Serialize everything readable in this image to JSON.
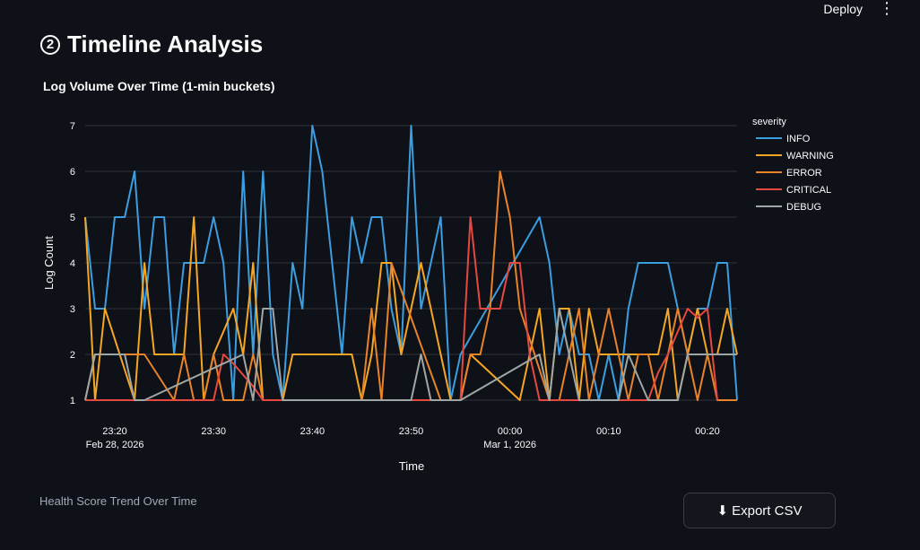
{
  "topbar": {
    "deploy_label": "Deploy",
    "menu_icon": "kebab-menu-icon"
  },
  "header": {
    "step_number": "2",
    "title": "Timeline Analysis"
  },
  "chart_section": {
    "title": "Log Volume Over Time (1-min buckets)"
  },
  "footer": {
    "health_label": "Health Score Trend Over Time",
    "export_label": "Export CSV",
    "export_icon": "download-arrow-icon"
  },
  "chart_data": {
    "type": "line",
    "title": "Log Volume Over Time (1-min buckets)",
    "xlabel": "Time",
    "ylabel": "Log Count",
    "ylim": [
      1,
      7
    ],
    "yticks": [
      1,
      2,
      3,
      4,
      5,
      6,
      7
    ],
    "x_start": "2026-02-28 23:17",
    "x_range_minutes": [
      0,
      66
    ],
    "xticks": [
      {
        "minute": 3,
        "label": "23:20",
        "sublabel": "Feb 28, 2026"
      },
      {
        "minute": 13,
        "label": "23:30",
        "sublabel": ""
      },
      {
        "minute": 23,
        "label": "23:40",
        "sublabel": ""
      },
      {
        "minute": 33,
        "label": "23:50",
        "sublabel": ""
      },
      {
        "minute": 43,
        "label": "00:00",
        "sublabel": "Mar 1, 2026"
      },
      {
        "minute": 53,
        "label": "00:10",
        "sublabel": ""
      },
      {
        "minute": 63,
        "label": "00:20",
        "sublabel": ""
      }
    ],
    "grid": true,
    "legend": {
      "title": "severity",
      "position": "right"
    },
    "series": [
      {
        "name": "INFO",
        "color": "#3b9ee0",
        "points": [
          [
            0,
            5
          ],
          [
            1,
            3
          ],
          [
            2,
            3
          ],
          [
            3,
            5
          ],
          [
            4,
            5
          ],
          [
            5,
            6
          ],
          [
            6,
            3
          ],
          [
            7,
            5
          ],
          [
            8,
            5
          ],
          [
            9,
            2
          ],
          [
            10,
            4
          ],
          [
            11,
            4
          ],
          [
            12,
            4
          ],
          [
            13,
            5
          ],
          [
            14,
            4
          ],
          [
            15,
            1
          ],
          [
            16,
            6
          ],
          [
            17,
            2
          ],
          [
            18,
            6
          ],
          [
            19,
            2
          ],
          [
            20,
            1
          ],
          [
            21,
            4
          ],
          [
            22,
            3
          ],
          [
            23,
            7
          ],
          [
            24,
            6
          ],
          [
            25,
            4
          ],
          [
            26,
            2
          ],
          [
            27,
            5
          ],
          [
            28,
            4
          ],
          [
            29,
            5
          ],
          [
            30,
            5
          ],
          [
            31,
            3
          ],
          [
            32,
            2
          ],
          [
            33,
            7
          ],
          [
            34,
            3
          ],
          [
            35,
            4
          ],
          [
            36,
            5
          ],
          [
            37,
            1
          ],
          [
            38,
            2
          ],
          [
            46,
            5
          ],
          [
            47,
            4
          ],
          [
            48,
            2
          ],
          [
            49,
            3
          ],
          [
            50,
            2
          ],
          [
            51,
            2
          ],
          [
            52,
            1
          ],
          [
            53,
            2
          ],
          [
            54,
            1
          ],
          [
            55,
            3
          ],
          [
            56,
            4
          ],
          [
            57,
            4
          ],
          [
            58,
            4
          ],
          [
            59,
            4
          ],
          [
            60,
            3
          ],
          [
            61,
            2
          ],
          [
            62,
            3
          ],
          [
            63,
            3
          ],
          [
            64,
            4
          ],
          [
            65,
            4
          ],
          [
            66,
            1
          ]
        ]
      },
      {
        "name": "WARNING",
        "color": "#f5a623",
        "points": [
          [
            0,
            5
          ],
          [
            1,
            1
          ],
          [
            2,
            3
          ],
          [
            5,
            1
          ],
          [
            6,
            4
          ],
          [
            7,
            2
          ],
          [
            8,
            2
          ],
          [
            9,
            2
          ],
          [
            10,
            2
          ],
          [
            11,
            5
          ],
          [
            12,
            1
          ],
          [
            13,
            2
          ],
          [
            15,
            3
          ],
          [
            16,
            2
          ],
          [
            17,
            4
          ],
          [
            18,
            1
          ],
          [
            19,
            1
          ],
          [
            20,
            1
          ],
          [
            21,
            2
          ],
          [
            22,
            2
          ],
          [
            23,
            2
          ],
          [
            24,
            2
          ],
          [
            25,
            2
          ],
          [
            26,
            2
          ],
          [
            27,
            2
          ],
          [
            28,
            1
          ],
          [
            29,
            2
          ],
          [
            30,
            4
          ],
          [
            31,
            4
          ],
          [
            32,
            2
          ],
          [
            34,
            4
          ],
          [
            35,
            3
          ],
          [
            36,
            2
          ],
          [
            37,
            1
          ],
          [
            38,
            1
          ],
          [
            39,
            2
          ],
          [
            44,
            1
          ],
          [
            45,
            2
          ],
          [
            46,
            3
          ],
          [
            47,
            1
          ],
          [
            48,
            3
          ],
          [
            49,
            3
          ],
          [
            50,
            1
          ],
          [
            51,
            3
          ],
          [
            52,
            2
          ],
          [
            53,
            2
          ],
          [
            54,
            2
          ],
          [
            55,
            2
          ],
          [
            56,
            2
          ],
          [
            57,
            2
          ],
          [
            58,
            2
          ],
          [
            59,
            3
          ],
          [
            60,
            1
          ],
          [
            61,
            2
          ],
          [
            62,
            3
          ],
          [
            63,
            2
          ],
          [
            64,
            2
          ],
          [
            65,
            3
          ],
          [
            66,
            2
          ]
        ]
      },
      {
        "name": "ERROR",
        "color": "#e8832a",
        "points": [
          [
            0,
            1
          ],
          [
            1,
            2
          ],
          [
            2,
            2
          ],
          [
            3,
            2
          ],
          [
            4,
            2
          ],
          [
            5,
            2
          ],
          [
            6,
            2
          ],
          [
            9,
            1
          ],
          [
            10,
            2
          ],
          [
            11,
            1
          ],
          [
            12,
            1
          ],
          [
            13,
            2
          ],
          [
            14,
            1
          ],
          [
            15,
            1
          ],
          [
            16,
            1
          ],
          [
            17,
            2
          ],
          [
            18,
            1
          ],
          [
            19,
            1
          ],
          [
            20,
            1
          ],
          [
            21,
            1
          ],
          [
            22,
            1
          ],
          [
            23,
            1
          ],
          [
            24,
            1
          ],
          [
            25,
            1
          ],
          [
            26,
            1
          ],
          [
            27,
            1
          ],
          [
            28,
            1
          ],
          [
            29,
            3
          ],
          [
            30,
            1
          ],
          [
            31,
            4
          ],
          [
            36,
            1
          ],
          [
            37,
            1
          ],
          [
            38,
            1
          ],
          [
            39,
            2
          ],
          [
            40,
            2
          ],
          [
            41,
            3
          ],
          [
            42,
            6
          ],
          [
            43,
            5
          ],
          [
            44,
            3
          ],
          [
            47,
            1
          ],
          [
            48,
            1
          ],
          [
            49,
            2
          ],
          [
            50,
            3
          ],
          [
            51,
            1
          ],
          [
            52,
            2
          ],
          [
            53,
            3
          ],
          [
            54,
            2
          ],
          [
            55,
            1
          ],
          [
            56,
            2
          ],
          [
            57,
            2
          ],
          [
            58,
            1
          ],
          [
            59,
            2
          ],
          [
            60,
            3
          ],
          [
            61,
            2
          ],
          [
            62,
            1
          ],
          [
            63,
            2
          ],
          [
            64,
            1
          ],
          [
            65,
            1
          ],
          [
            66,
            1
          ]
        ]
      },
      {
        "name": "CRITICAL",
        "color": "#e5483f",
        "points": [
          [
            0,
            1
          ],
          [
            1,
            1
          ],
          [
            2,
            1
          ],
          [
            3,
            1
          ],
          [
            4,
            1
          ],
          [
            5,
            1
          ],
          [
            6,
            1
          ],
          [
            7,
            1
          ],
          [
            8,
            1
          ],
          [
            9,
            1
          ],
          [
            10,
            1
          ],
          [
            11,
            1
          ],
          [
            12,
            1
          ],
          [
            13,
            1
          ],
          [
            14,
            2
          ],
          [
            15,
            1.8
          ],
          [
            17,
            1.3
          ],
          [
            18,
            1
          ],
          [
            28,
            1
          ],
          [
            29,
            1
          ],
          [
            30,
            1
          ],
          [
            31,
            1
          ],
          [
            32,
            1
          ],
          [
            33,
            1
          ],
          [
            34,
            1
          ],
          [
            36,
            1
          ],
          [
            38,
            1
          ],
          [
            39,
            5
          ],
          [
            40,
            3
          ],
          [
            41,
            3
          ],
          [
            42,
            3
          ],
          [
            43,
            4
          ],
          [
            44,
            4
          ],
          [
            45,
            2
          ],
          [
            46,
            1
          ],
          [
            47,
            1
          ],
          [
            48,
            1
          ],
          [
            49,
            1
          ],
          [
            50,
            1
          ],
          [
            51,
            1
          ],
          [
            52,
            1
          ],
          [
            53,
            1
          ],
          [
            54,
            1
          ],
          [
            55,
            1
          ],
          [
            56,
            1
          ],
          [
            57,
            1
          ],
          [
            58,
            1.6
          ],
          [
            59,
            2
          ],
          [
            60,
            2.5
          ],
          [
            61,
            3
          ],
          [
            62,
            2.8
          ],
          [
            63,
            3
          ],
          [
            64,
            1
          ]
        ]
      },
      {
        "name": "DEBUG",
        "color": "#9ea7a6",
        "points": [
          [
            0,
            1
          ],
          [
            1,
            2
          ],
          [
            2,
            2
          ],
          [
            3,
            2
          ],
          [
            4,
            2
          ],
          [
            5,
            1
          ],
          [
            6,
            1
          ],
          [
            7,
            1.1
          ],
          [
            16,
            2
          ],
          [
            17,
            1
          ],
          [
            18,
            3
          ],
          [
            19,
            3
          ],
          [
            20,
            1
          ],
          [
            21,
            1
          ],
          [
            22,
            1
          ],
          [
            23,
            1
          ],
          [
            24,
            1
          ],
          [
            25,
            1
          ],
          [
            26,
            1
          ],
          [
            27,
            1
          ],
          [
            28,
            1
          ],
          [
            29,
            1
          ],
          [
            30,
            1
          ],
          [
            31,
            1
          ],
          [
            32,
            1
          ],
          [
            33,
            1
          ],
          [
            34,
            2
          ],
          [
            35,
            1
          ],
          [
            36,
            1
          ],
          [
            37,
            1
          ],
          [
            38,
            1
          ],
          [
            46,
            2
          ],
          [
            47,
            1
          ],
          [
            48,
            3
          ],
          [
            49,
            2
          ],
          [
            50,
            1
          ],
          [
            51,
            1
          ],
          [
            52,
            1
          ],
          [
            53,
            1
          ],
          [
            54,
            1
          ],
          [
            55,
            2
          ],
          [
            56,
            1.5
          ],
          [
            57,
            1
          ],
          [
            58,
            1
          ],
          [
            59,
            1
          ],
          [
            60,
            1
          ],
          [
            61,
            2
          ],
          [
            62,
            2
          ],
          [
            63,
            2
          ],
          [
            64,
            2
          ],
          [
            65,
            2
          ],
          [
            66,
            2
          ]
        ]
      }
    ]
  }
}
